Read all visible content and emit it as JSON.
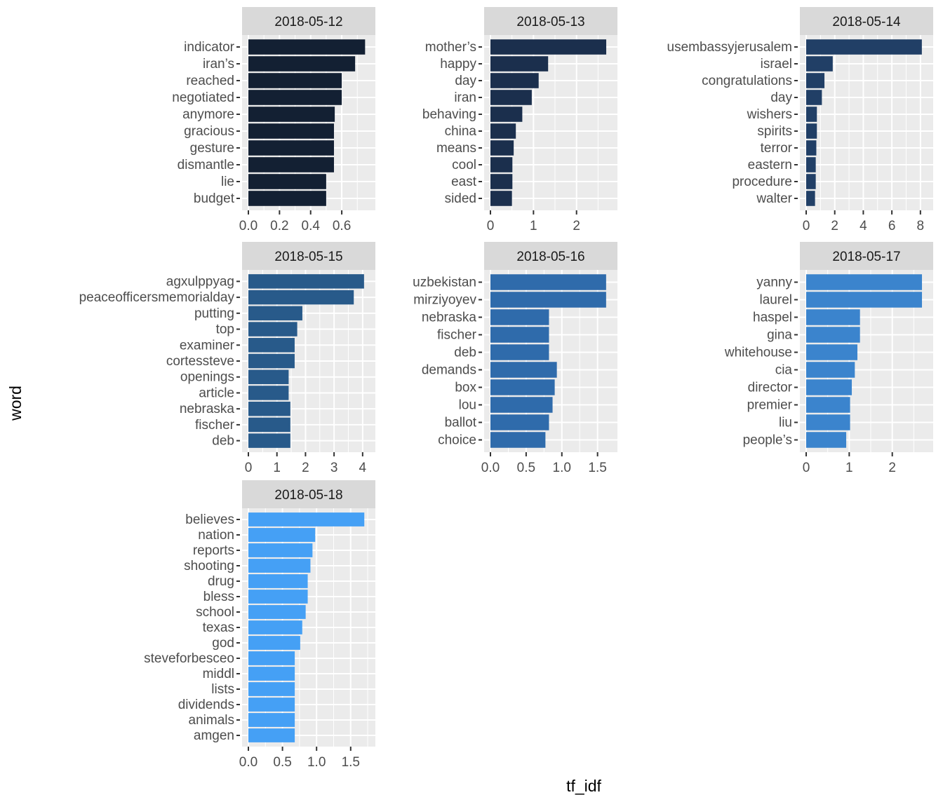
{
  "chart_data": {
    "type": "bar",
    "orientation": "horizontal",
    "facet": "wrap",
    "xlabel": "tf_idf",
    "ylabel": "word",
    "grid": true,
    "panels": [
      {
        "title": "2018-05-12",
        "color": "#132033",
        "xlim": [
          0,
          0.78
        ],
        "ticks": [
          0,
          0.2,
          0.4,
          0.6
        ],
        "tick_labels": [
          "0.0",
          "0.2",
          "0.4",
          "0.6"
        ],
        "words": [
          "indicator",
          "iran’s",
          "reached",
          "negotiated",
          "anymore",
          "gracious",
          "gesture",
          "dismantle",
          "lie",
          "budget"
        ],
        "values": [
          0.75,
          0.686,
          0.6,
          0.6,
          0.555,
          0.55,
          0.55,
          0.55,
          0.5,
          0.5
        ]
      },
      {
        "title": "2018-05-13",
        "color": "#1b2f4d",
        "xlim": [
          0,
          2.82
        ],
        "ticks": [
          0,
          1,
          2
        ],
        "tick_labels": [
          "0",
          "1",
          "2"
        ],
        "words": [
          "mother’s",
          "happy",
          "day",
          "iran",
          "behaving",
          "china",
          "means",
          "cool",
          "east",
          "sided"
        ],
        "values": [
          2.69,
          1.34,
          1.12,
          0.96,
          0.74,
          0.59,
          0.54,
          0.51,
          0.51,
          0.5
        ]
      },
      {
        "title": "2018-05-14",
        "color": "#213f66",
        "xlim": [
          0,
          8.5
        ],
        "ticks": [
          0,
          2,
          4,
          6,
          8
        ],
        "tick_labels": [
          "0",
          "2",
          "4",
          "6",
          "8"
        ],
        "words": [
          "usembassyjerusalem",
          "israel",
          "congratulations",
          "day",
          "wishers",
          "spirits",
          "terror",
          "eastern",
          "procedure",
          "walter"
        ],
        "values": [
          8.1,
          1.86,
          1.28,
          1.1,
          0.75,
          0.75,
          0.71,
          0.67,
          0.67,
          0.62
        ]
      },
      {
        "title": "2018-05-15",
        "color": "#285a8a",
        "xlim": [
          0,
          4.25
        ],
        "ticks": [
          0,
          1,
          2,
          3,
          4
        ],
        "tick_labels": [
          "0",
          "1",
          "2",
          "3",
          "4"
        ],
        "words": [
          "agxulppyag",
          "peaceofficersmemorialday",
          "putting",
          "top",
          "examiner",
          "cortessteve",
          "openings",
          "article",
          "nebraska",
          "fischer",
          "deb"
        ],
        "values": [
          4.05,
          3.69,
          1.89,
          1.71,
          1.62,
          1.62,
          1.41,
          1.41,
          1.47,
          1.47,
          1.47
        ]
      },
      {
        "title": "2018-05-16",
        "color": "#2f6bab",
        "xlim": [
          0,
          1.7
        ],
        "ticks": [
          0,
          0.5,
          1.0,
          1.5
        ],
        "tick_labels": [
          "0.0",
          "0.5",
          "1.0",
          "1.5"
        ],
        "words": [
          "uzbekistan",
          "mirziyoyev",
          "nebraska",
          "fischer",
          "deb",
          "demands",
          "box",
          "lou",
          "ballot",
          "choice"
        ],
        "values": [
          1.62,
          1.62,
          0.82,
          0.82,
          0.82,
          0.93,
          0.9,
          0.87,
          0.82,
          0.77
        ]
      },
      {
        "title": "2018-05-17",
        "color": "#3b84cd",
        "xlim": [
          0,
          2.82
        ],
        "ticks": [
          0,
          1,
          2
        ],
        "tick_labels": [
          "0",
          "1",
          "2"
        ],
        "words": [
          "yanny",
          "laurel",
          "haspel",
          "gina",
          "whitehouse",
          "cia",
          "director",
          "premier",
          "liu",
          "people’s"
        ],
        "values": [
          2.69,
          2.69,
          1.25,
          1.25,
          1.19,
          1.13,
          1.06,
          1.02,
          1.02,
          0.93
        ]
      },
      {
        "title": "2018-05-18",
        "color": "#45a0f5",
        "xlim": [
          0,
          1.78
        ],
        "ticks": [
          0,
          0.5,
          1.0,
          1.5
        ],
        "tick_labels": [
          "0.0",
          "0.5",
          "1.0",
          "1.5"
        ],
        "words": [
          "believes",
          "nation",
          "reports",
          "shooting",
          "drug",
          "bless",
          "school",
          "texas",
          "god",
          "steveforbesceo",
          "middl",
          "lists",
          "dividends",
          "animals",
          "amgen"
        ],
        "values": [
          1.7,
          0.98,
          0.94,
          0.91,
          0.87,
          0.87,
          0.84,
          0.79,
          0.76,
          0.68,
          0.68,
          0.68,
          0.68,
          0.68,
          0.68
        ]
      }
    ]
  }
}
